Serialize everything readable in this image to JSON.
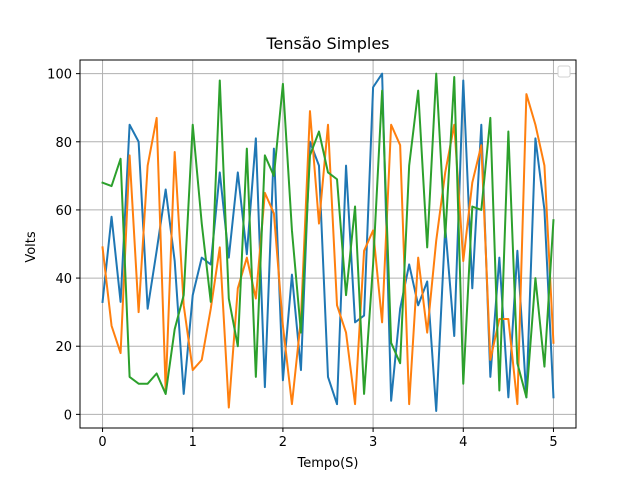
{
  "chart_data": {
    "type": "line",
    "title": "Tensão Simples",
    "xlabel": "Tempo(S)",
    "ylabel": "Volts",
    "xlim": [
      -0.25,
      5.25
    ],
    "ylim": [
      -4,
      104
    ],
    "xticks": [
      0,
      1,
      2,
      3,
      4,
      5
    ],
    "yticks": [
      0,
      20,
      40,
      60,
      80,
      100
    ],
    "grid": true,
    "legend": "top-right",
    "x": [
      0,
      0.1,
      0.2,
      0.3,
      0.4,
      0.5,
      0.6,
      0.7,
      0.8,
      0.9,
      1.0,
      1.1,
      1.2,
      1.3,
      1.4,
      1.5,
      1.6,
      1.7,
      1.8,
      1.9,
      2.0,
      2.1,
      2.2,
      2.3,
      2.4,
      2.5,
      2.6,
      2.7,
      2.8,
      2.9,
      3.0,
      3.1,
      3.2,
      3.3,
      3.4,
      3.5,
      3.6,
      3.7,
      3.8,
      3.9,
      4.0,
      4.1,
      4.2,
      4.3,
      4.4,
      4.5,
      4.6,
      4.7,
      4.8,
      4.9,
      5.0
    ],
    "series": [
      {
        "color": "#1f77b4",
        "values": [
          33,
          58,
          33,
          85,
          80,
          31,
          48,
          66,
          45,
          6,
          35,
          46,
          44,
          71,
          46,
          71,
          47,
          81,
          8,
          78,
          10,
          41,
          13,
          80,
          73,
          11,
          3,
          73,
          27,
          29,
          96,
          100,
          4,
          31,
          44,
          32,
          39,
          1,
          55,
          23,
          98,
          37,
          85,
          11,
          46,
          5,
          48,
          5,
          81,
          60,
          5
        ]
      },
      {
        "color": "#ff7f0e",
        "values": [
          49,
          26,
          18,
          76,
          30,
          73,
          87,
          7,
          77,
          32,
          13,
          16,
          31,
          49,
          2,
          37,
          46,
          34,
          65,
          59,
          26,
          3,
          28,
          89,
          56,
          85,
          32,
          24,
          3,
          48,
          54,
          27,
          85,
          79,
          3,
          46,
          24,
          51,
          71,
          85,
          45,
          68,
          79,
          16,
          28,
          28,
          3,
          94,
          85,
          73,
          21
        ]
      },
      {
        "color": "#2ca02c",
        "values": [
          68,
          67,
          75,
          11,
          9,
          9,
          12,
          6,
          25,
          35,
          85,
          56,
          33,
          98,
          34,
          20,
          78,
          11,
          76,
          70,
          97,
          54,
          24,
          76,
          83,
          71,
          69,
          35,
          61,
          6,
          44,
          95,
          21,
          15,
          73,
          95,
          49,
          100,
          52,
          99,
          9,
          61,
          60,
          87,
          7,
          83,
          15,
          5,
          40,
          14,
          57
        ]
      }
    ]
  }
}
